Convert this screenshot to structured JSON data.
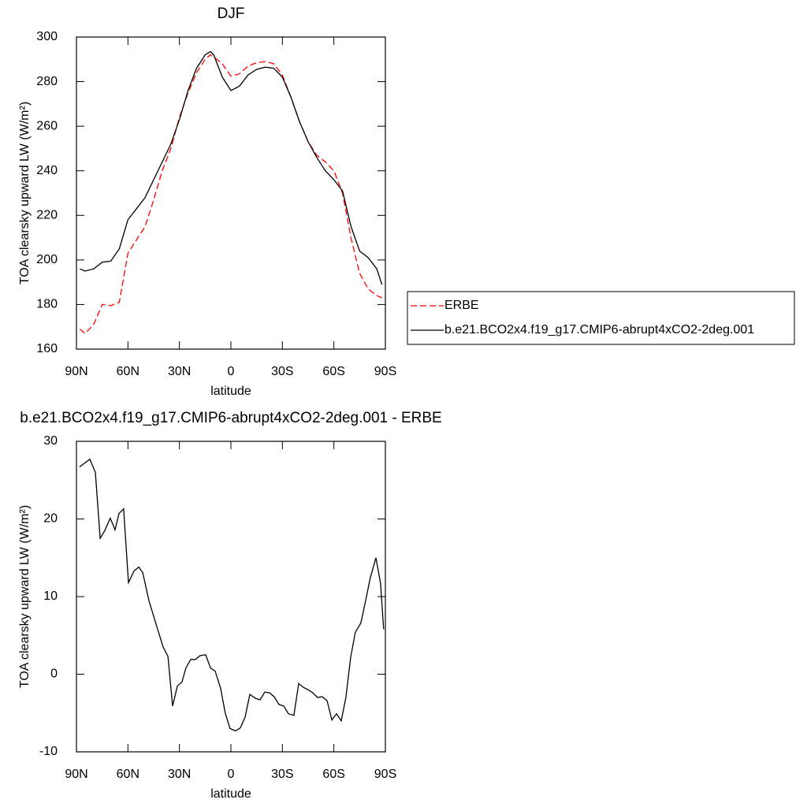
{
  "chart_data": [
    {
      "type": "line",
      "title": "DJF",
      "xlabel": "latitude",
      "ylabel": "TOA clearsky upward LW (W/m²)",
      "x": [
        88,
        85,
        80,
        75,
        70,
        65,
        60,
        55,
        50,
        45,
        40,
        35,
        30,
        25,
        20,
        15,
        12,
        10,
        5,
        0,
        -5,
        -10,
        -15,
        -20,
        -25,
        -30,
        -35,
        -40,
        -45,
        -50,
        -55,
        -60,
        -65,
        -70,
        -75,
        -80,
        -85,
        -88
      ],
      "series": [
        {
          "name": "ERBE",
          "color": "#ff0000",
          "dash": true,
          "values": [
            169,
            167,
            171,
            180,
            179.5,
            181,
            203,
            209,
            215,
            227,
            240,
            250,
            264,
            275,
            284,
            290,
            292,
            291,
            288,
            282.5,
            283.5,
            287,
            288.5,
            289,
            288,
            283,
            273,
            262,
            253,
            247,
            244,
            240,
            230,
            210,
            194,
            187,
            184,
            183
          ]
        },
        {
          "name": "b.e21.BCO2x4.f19_g17.CMIP6-abrupt4xCO2-2deg.001",
          "color": "#000000",
          "dash": false,
          "values": [
            196,
            195,
            196,
            199,
            199.5,
            205,
            218,
            223,
            228,
            236,
            244,
            252,
            263,
            276,
            286,
            292,
            293.5,
            292,
            282,
            276,
            278,
            283,
            285.5,
            286.5,
            286,
            282,
            273,
            262,
            253,
            246,
            240,
            236,
            231,
            215,
            204,
            201,
            196,
            189
          ]
        }
      ],
      "xlim": [
        90,
        -90
      ],
      "xticks": [
        {
          "value": 90,
          "label": "90N"
        },
        {
          "value": 60,
          "label": "60N"
        },
        {
          "value": 30,
          "label": "30N"
        },
        0,
        {
          "value": -30,
          "label": "30S"
        },
        {
          "value": -60,
          "label": "60S"
        },
        {
          "value": -90,
          "label": "90S"
        }
      ],
      "ylim": [
        160,
        300
      ],
      "yticks": [
        160,
        180,
        200,
        220,
        240,
        260,
        280,
        300
      ],
      "legend": "right"
    },
    {
      "type": "line",
      "title": "b.e21.BCO2x4.f19_g17.CMIP6-abrupt4xCO2-2deg.001 - ERBE",
      "xlabel": "latitude",
      "ylabel": "TOA clearsky upward LW (W/m²)",
      "x": [
        88.2,
        82.2,
        79,
        76.2,
        73.5,
        70.3,
        67.5,
        65.2,
        62.5,
        59.7,
        56.5,
        53.7,
        51.4,
        47.8,
        42.7,
        39.5,
        36.7,
        34,
        31.2,
        28.5,
        26.2,
        23.4,
        20.7,
        17.9,
        14.7,
        11.9,
        9.2,
        6,
        3.3,
        0.5,
        -2.7,
        -5.5,
        -8.3,
        -11,
        -14.2,
        -17,
        -19.7,
        -22.5,
        -25.2,
        -28,
        -30.8,
        -33.5,
        -36.7,
        -39.5,
        -42.2,
        -45,
        -47.7,
        -50.5,
        -53.2,
        -56,
        -58.8,
        -61.5,
        -64.3,
        -67,
        -69.8,
        -72.5,
        -75.7,
        -78.5,
        -81.2,
        -84.5,
        -87.2,
        -89
      ],
      "series": [
        {
          "color": "#000000",
          "dash": false,
          "values": [
            26.7,
            27.7,
            26,
            17.5,
            18.5,
            20.1,
            18.6,
            20.7,
            21.3,
            11.8,
            13.3,
            13.8,
            13.1,
            9.5,
            5.8,
            3.5,
            2.3,
            -4.1,
            -1.5,
            -1,
            0.8,
            1.9,
            1.9,
            2.4,
            2.5,
            0.8,
            0.4,
            -1.8,
            -5,
            -7,
            -7.3,
            -6.9,
            -5.5,
            -2.6,
            -3.1,
            -3.3,
            -2.3,
            -2.4,
            -2.9,
            -3.9,
            -4.1,
            -5.1,
            -5.3,
            -1.2,
            -1.7,
            -2,
            -2.4,
            -3,
            -2.9,
            -3.4,
            -5.9,
            -5.1,
            -6,
            -3,
            2.2,
            5.4,
            6.6,
            9.5,
            12.4,
            15,
            11.7,
            5.8
          ]
        }
      ],
      "xlim": [
        90,
        -90
      ],
      "xticks": [
        {
          "value": 90,
          "label": "90N"
        },
        {
          "value": 60,
          "label": "60N"
        },
        {
          "value": 30,
          "label": "30N"
        },
        0,
        {
          "value": -30,
          "label": "30S"
        },
        {
          "value": -60,
          "label": "60S"
        },
        {
          "value": -90,
          "label": "90S"
        }
      ],
      "ylim": [
        -10,
        30
      ],
      "yticks": [
        -10,
        0,
        10,
        20,
        30
      ]
    }
  ]
}
